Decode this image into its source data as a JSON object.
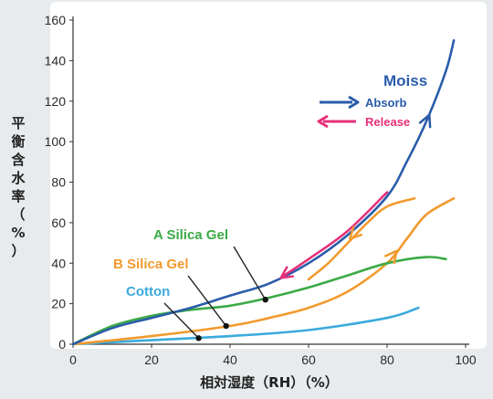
{
  "chart_data": {
    "type": "line",
    "title": "",
    "xlabel": "相対湿度（RH）（%）",
    "ylabel": "平衡含水率（%）",
    "xlim": [
      0,
      100
    ],
    "ylim": [
      0,
      160
    ],
    "x_ticks": [
      "0",
      "20",
      "40",
      "60",
      "80",
      "100"
    ],
    "y_ticks": [
      "0",
      "20",
      "40",
      "60",
      "80",
      "100",
      "120",
      "140",
      "160"
    ],
    "grid": false,
    "legend": {
      "title": "Moiss",
      "entries": [
        {
          "label": "Absorb",
          "color": "#2a5caa"
        },
        {
          "label": "Release",
          "color": "#e5307a"
        }
      ]
    },
    "series": [
      {
        "name": "Moiss",
        "color": "#2a5caa",
        "x": [
          0,
          10,
          20,
          30,
          40,
          50,
          60,
          70,
          80,
          85,
          90,
          95,
          97
        ],
        "y": [
          0,
          8,
          13,
          18,
          24,
          30,
          40,
          54,
          73,
          90,
          110,
          135,
          150
        ]
      },
      {
        "name": "Release",
        "color": "#e5307a",
        "x": [
          53,
          60,
          70,
          80
        ],
        "y": [
          33,
          42,
          56,
          75
        ]
      },
      {
        "name": "A Silica Gel",
        "color": "#3caa46",
        "x": [
          0,
          10,
          20,
          30,
          40,
          50,
          60,
          70,
          80,
          90,
          95
        ],
        "y": [
          0,
          9,
          14,
          17,
          19,
          23,
          28,
          34,
          40,
          43,
          42
        ]
      },
      {
        "name": "B Silica Gel",
        "color": "#f29a2e",
        "x": [
          0,
          20,
          40,
          50,
          60,
          70,
          80,
          85,
          90,
          97
        ],
        "y": [
          0,
          4,
          9,
          13,
          18,
          26,
          40,
          52,
          64,
          72
        ]
      },
      {
        "name": "B Silica Gel (release)",
        "color": "#f29a2e",
        "x": [
          87,
          80,
          75,
          70,
          65,
          60
        ],
        "y": [
          72,
          68,
          60,
          50,
          40,
          32
        ]
      },
      {
        "name": "Cotton",
        "color": "#3aaadc",
        "x": [
          0,
          20,
          40,
          60,
          80,
          88
        ],
        "y": [
          0,
          2,
          4,
          7,
          13,
          18
        ]
      }
    ],
    "labels": [
      {
        "text": "A Silica Gel",
        "color": "#3caa46",
        "point": [
          49,
          22
        ]
      },
      {
        "text": "B Silica Gel",
        "color": "#f29a2e",
        "point": [
          39,
          9
        ]
      },
      {
        "text": "Cotton",
        "color": "#3aaadc",
        "point": [
          32,
          3
        ]
      }
    ]
  }
}
